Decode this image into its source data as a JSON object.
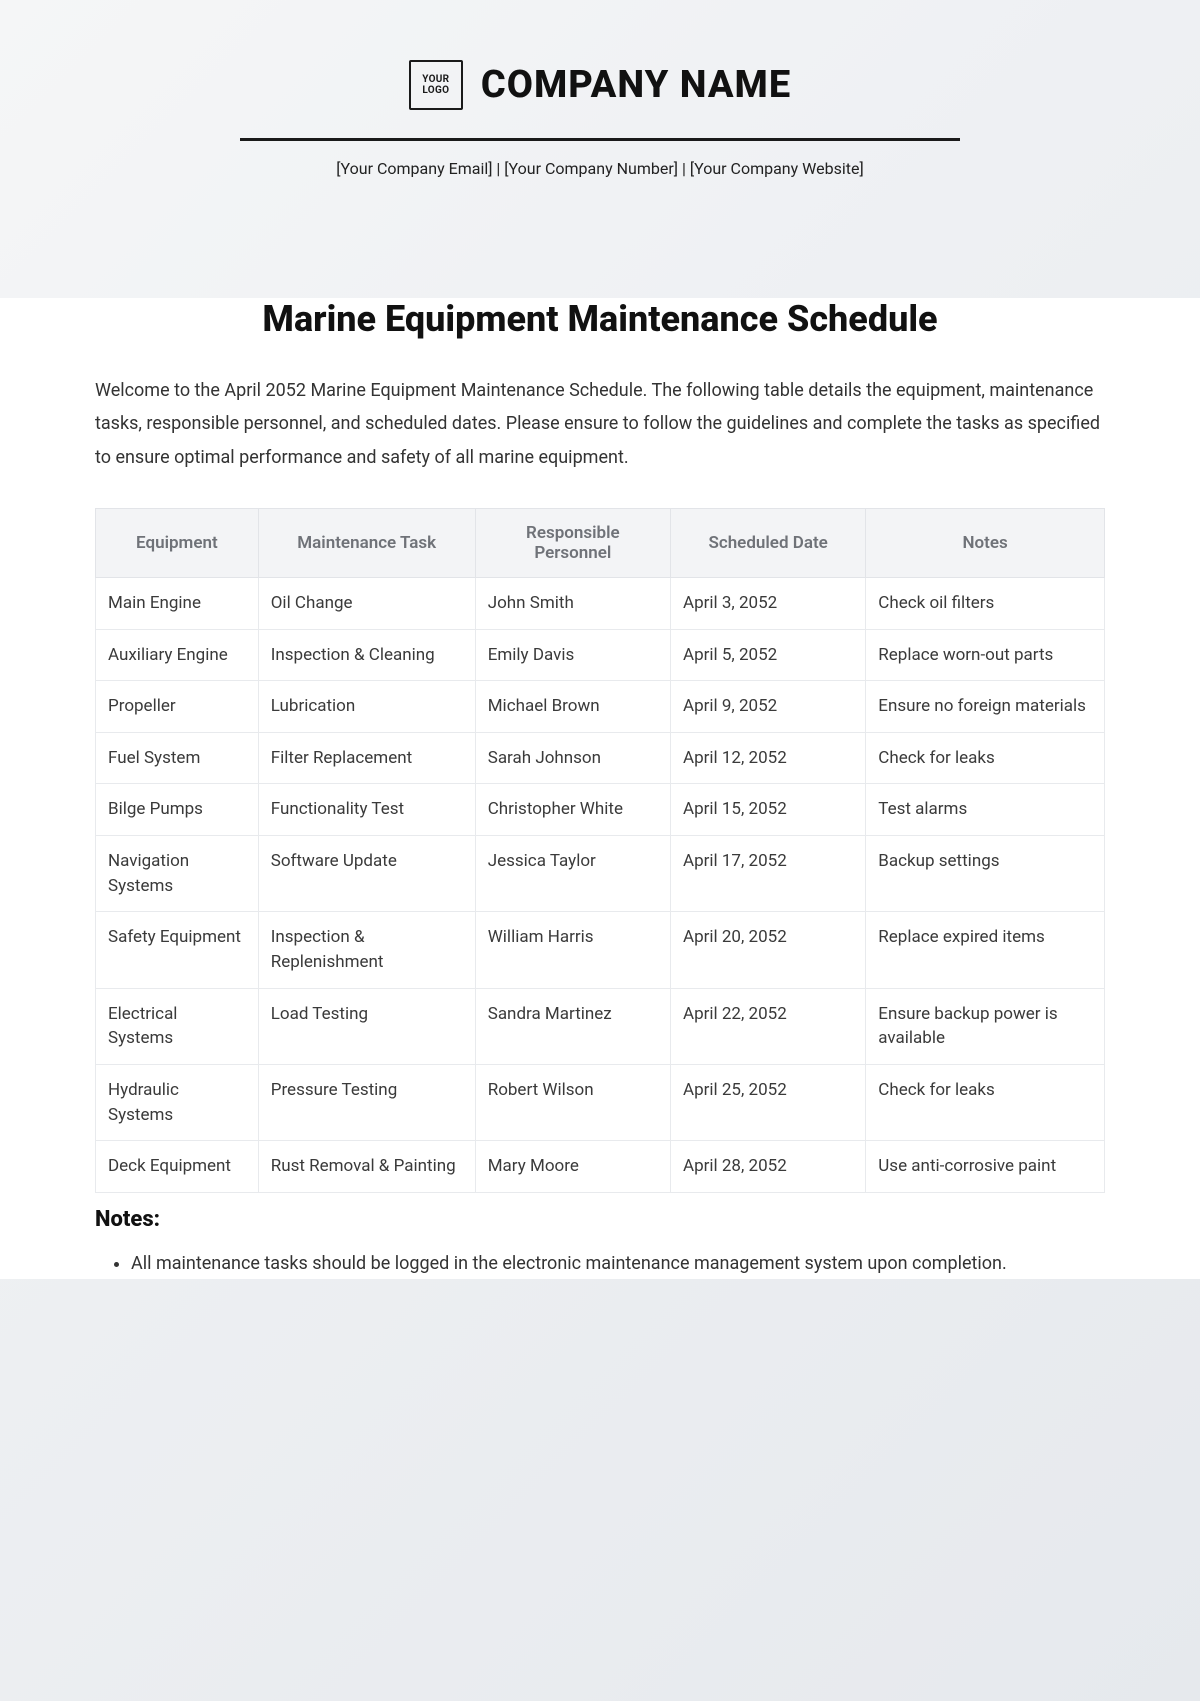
{
  "header": {
    "logo_text": "YOUR\nLOGO",
    "company_name": "COMPANY NAME",
    "contact_line": "[Your Company Email] | [Your Company Number] | [Your Company Website]"
  },
  "document": {
    "title": "Marine Equipment Maintenance Schedule",
    "intro": "Welcome to the April 2052 Marine Equipment Maintenance Schedule. The following table details the equipment, maintenance tasks, responsible personnel, and scheduled dates. Please ensure to follow the guidelines and complete the tasks as specified to ensure optimal performance and safety of all marine equipment."
  },
  "table": {
    "columns": [
      "Equipment",
      "Maintenance Task",
      "Responsible Personnel",
      "Scheduled Date",
      "Notes"
    ],
    "rows": [
      [
        "Main Engine",
        "Oil Change",
        "John Smith",
        "April 3, 2052",
        "Check oil filters"
      ],
      [
        "Auxiliary Engine",
        "Inspection & Cleaning",
        "Emily Davis",
        "April 5, 2052",
        "Replace worn-out parts"
      ],
      [
        "Propeller",
        "Lubrication",
        "Michael Brown",
        "April 9, 2052",
        "Ensure no foreign materials"
      ],
      [
        "Fuel System",
        "Filter Replacement",
        "Sarah Johnson",
        "April 12, 2052",
        "Check for leaks"
      ],
      [
        "Bilge Pumps",
        "Functionality Test",
        "Christopher White",
        "April 15, 2052",
        "Test alarms"
      ],
      [
        "Navigation Systems",
        "Software Update",
        "Jessica Taylor",
        "April 17, 2052",
        "Backup settings"
      ],
      [
        "Safety Equipment",
        "Inspection & Replenishment",
        "William Harris",
        "April 20, 2052",
        "Replace expired items"
      ],
      [
        "Electrical Systems",
        "Load Testing",
        "Sandra Martinez",
        "April 22, 2052",
        "Ensure backup power is available"
      ],
      [
        "Hydraulic Systems",
        "Pressure Testing",
        "Robert Wilson",
        "April 25, 2052",
        "Check for leaks"
      ],
      [
        "Deck Equipment",
        "Rust Removal & Painting",
        "Mary Moore",
        "April 28, 2052",
        "Use anti-corrosive paint"
      ]
    ]
  },
  "notes": {
    "heading": "Notes:",
    "items": [
      "All maintenance tasks should be logged in the electronic maintenance management system upon completion."
    ]
  },
  "style": {
    "background_gradient_start": "#f5f6f7",
    "background_gradient_end": "#e6e9ed",
    "heading_color": "#111111",
    "body_text_color": "#333333",
    "th_bg": "#f3f4f6",
    "th_color": "#6f7278",
    "border_color": "#e8eaed",
    "hr_color": "#1a1a1a"
  }
}
